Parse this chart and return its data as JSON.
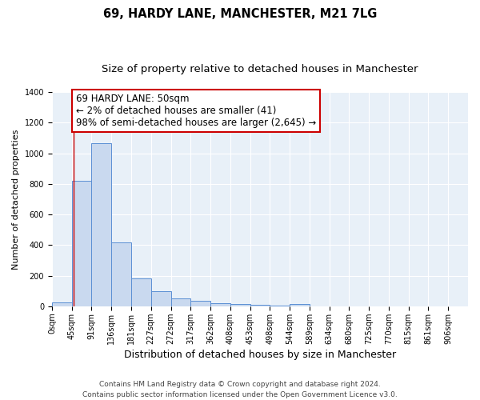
{
  "title": "69, HARDY LANE, MANCHESTER, M21 7LG",
  "subtitle": "Size of property relative to detached houses in Manchester",
  "xlabel": "Distribution of detached houses by size in Manchester",
  "ylabel": "Number of detached properties",
  "bin_labels": [
    "0sqm",
    "45sqm",
    "91sqm",
    "136sqm",
    "181sqm",
    "227sqm",
    "272sqm",
    "317sqm",
    "362sqm",
    "408sqm",
    "453sqm",
    "498sqm",
    "544sqm",
    "589sqm",
    "634sqm",
    "680sqm",
    "725sqm",
    "770sqm",
    "815sqm",
    "861sqm",
    "906sqm"
  ],
  "bar_values": [
    25,
    820,
    1065,
    415,
    185,
    100,
    50,
    38,
    22,
    15,
    8,
    5,
    15,
    0,
    0,
    0,
    0,
    0,
    0,
    0
  ],
  "bar_color": "#c9d9ef",
  "bar_edge_color": "#5b8fd4",
  "background_color": "#e8f0f8",
  "grid_color": "#ffffff",
  "annotation_text": "69 HARDY LANE: 50sqm\n← 2% of detached houses are smaller (41)\n98% of semi-detached houses are larger (2,645) →",
  "annotation_box_color": "#ffffff",
  "annotation_box_edge_color": "#cc0000",
  "vline_color": "#cc0000",
  "ylim": [
    0,
    1400
  ],
  "yticks": [
    0,
    200,
    400,
    600,
    800,
    1000,
    1200,
    1400
  ],
  "footer_text": "Contains HM Land Registry data © Crown copyright and database right 2024.\nContains public sector information licensed under the Open Government Licence v3.0.",
  "title_fontsize": 10.5,
  "subtitle_fontsize": 9.5,
  "xlabel_fontsize": 9,
  "ylabel_fontsize": 8,
  "tick_fontsize": 7,
  "annotation_fontsize": 8.5,
  "footer_fontsize": 6.5
}
